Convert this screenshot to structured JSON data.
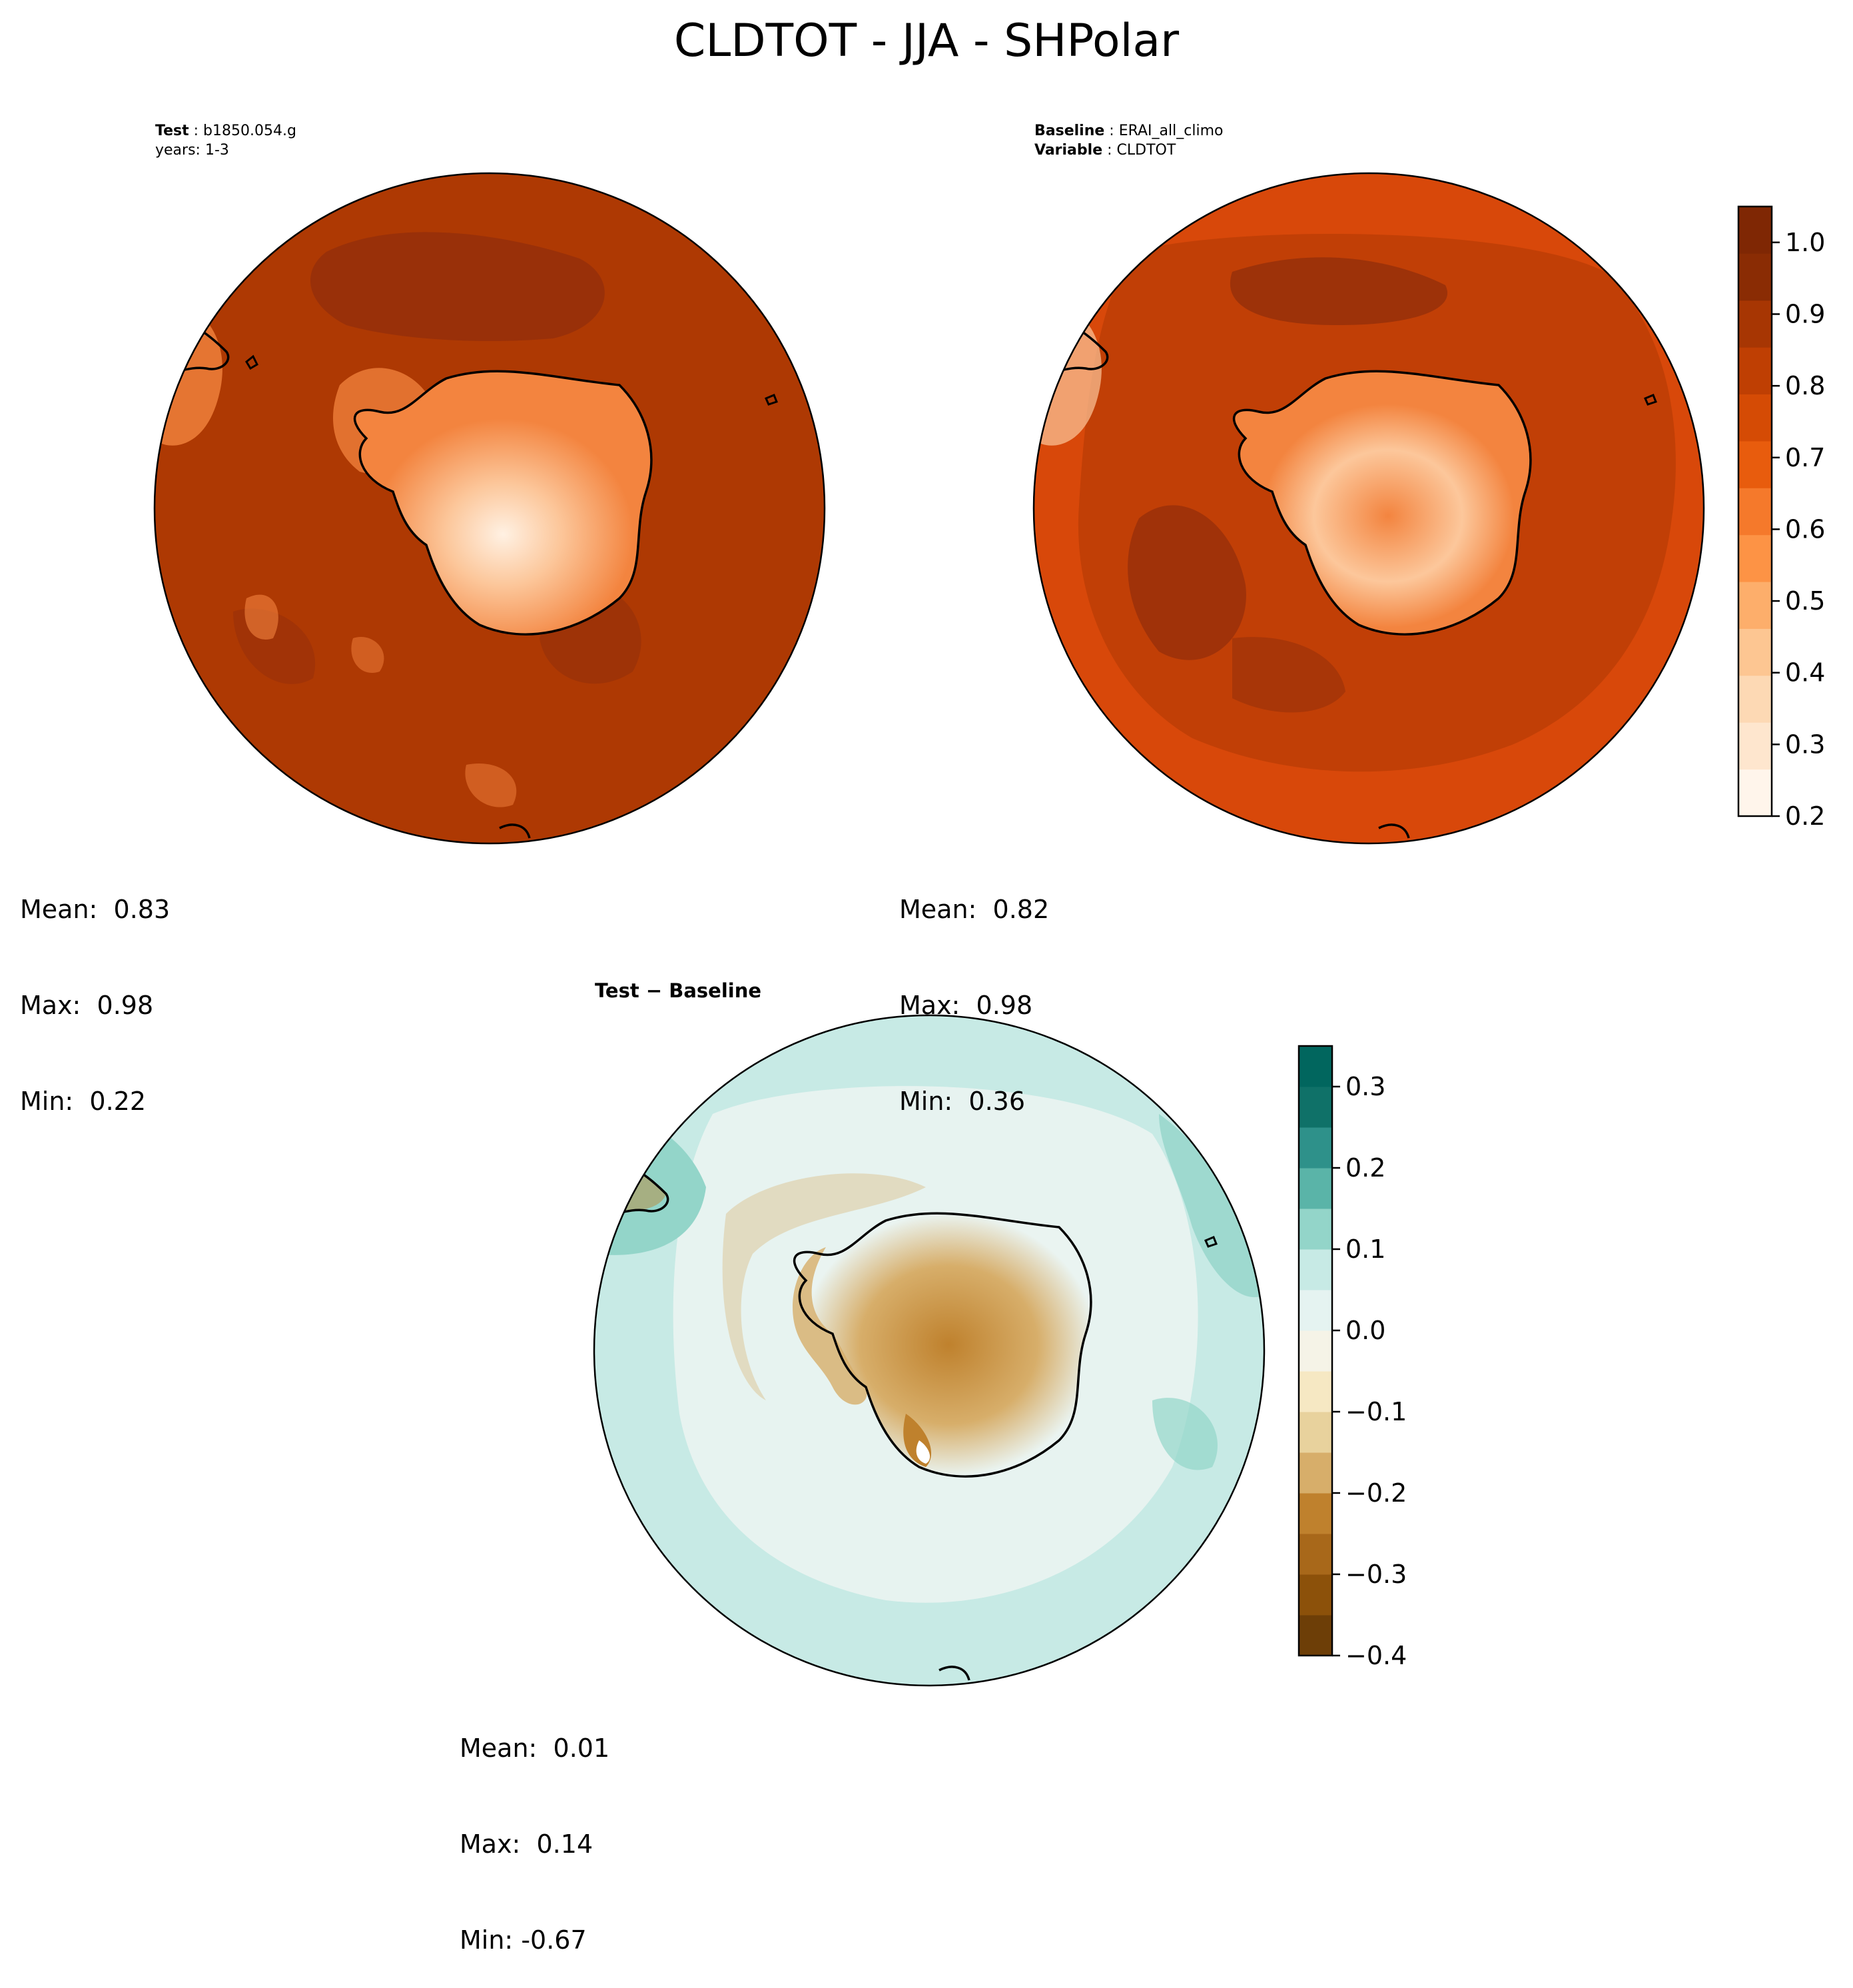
{
  "figure": {
    "title": "CLDTOT - JJA - SHPolar"
  },
  "panels": {
    "test": {
      "label_key": "Test",
      "label_value": "b1850.054.g",
      "line2": "years: 1-3",
      "stats": {
        "mean_label": "Mean:",
        "mean": "0.83",
        "max_label": "Max:",
        "max": "0.98",
        "min_label": "Min:",
        "min": "0.22"
      }
    },
    "baseline": {
      "label_key": "Baseline",
      "label_value": "ERAI_all_climo",
      "line2_key": "Variable",
      "line2_value": "CLDTOT",
      "stats": {
        "mean_label": "Mean:",
        "mean": "0.82",
        "max_label": "Max:",
        "max": "0.98",
        "min_label": "Min:",
        "min": "0.36"
      }
    },
    "diff": {
      "title": "Test − Baseline",
      "stats": {
        "mean_label": "Mean:",
        "mean": "0.01",
        "max_label": "Max:",
        "max": "0.14",
        "min_label": "Min:",
        "min": "-0.67"
      }
    }
  },
  "colorbars": {
    "main": {
      "range": [
        0.2,
        1.05
      ],
      "ticks": [
        "0.2",
        "0.3",
        "0.4",
        "0.5",
        "0.6",
        "0.7",
        "0.8",
        "0.9",
        "1.0"
      ],
      "colors": [
        "#fff5eb",
        "#fee6ce",
        "#fdd9b4",
        "#fdc692",
        "#fdae6b",
        "#fd9345",
        "#f5792b",
        "#e85c0d",
        "#d54b05",
        "#bf3f03",
        "#a73603",
        "#8a2c04",
        "#7f2704"
      ]
    },
    "diff": {
      "range": [
        -0.4,
        0.35
      ],
      "ticks": [
        "−0.4",
        "−0.3",
        "−0.2",
        "−0.1",
        "0.0",
        "0.1",
        "0.2",
        "0.3"
      ],
      "colors": [
        "#6d3e07",
        "#8c510a",
        "#a8681a",
        "#bf812d",
        "#d7ae6a",
        "#e8d29d",
        "#f6e8c3",
        "#f5f3e7",
        "#e5f3f1",
        "#c7eae5",
        "#93d5c9",
        "#5ab4a8",
        "#2e918a",
        "#0f7168",
        "#01665e"
      ]
    }
  },
  "map_colors": {
    "ocean_main": "#ae3903",
    "ocean_dark": "#97300a",
    "ocean_base": "#d8480a",
    "land_mid": "#f3843f",
    "land_light": "#fcc79b",
    "land_pale": "#fff1e3",
    "diff_ocean": "#c7eae5",
    "diff_teal": "#93d5c9",
    "diff_pale": "#eaf4f1",
    "diff_tan": "#d7ae6a",
    "diff_brown": "#bf812d",
    "coast": "#000000"
  }
}
